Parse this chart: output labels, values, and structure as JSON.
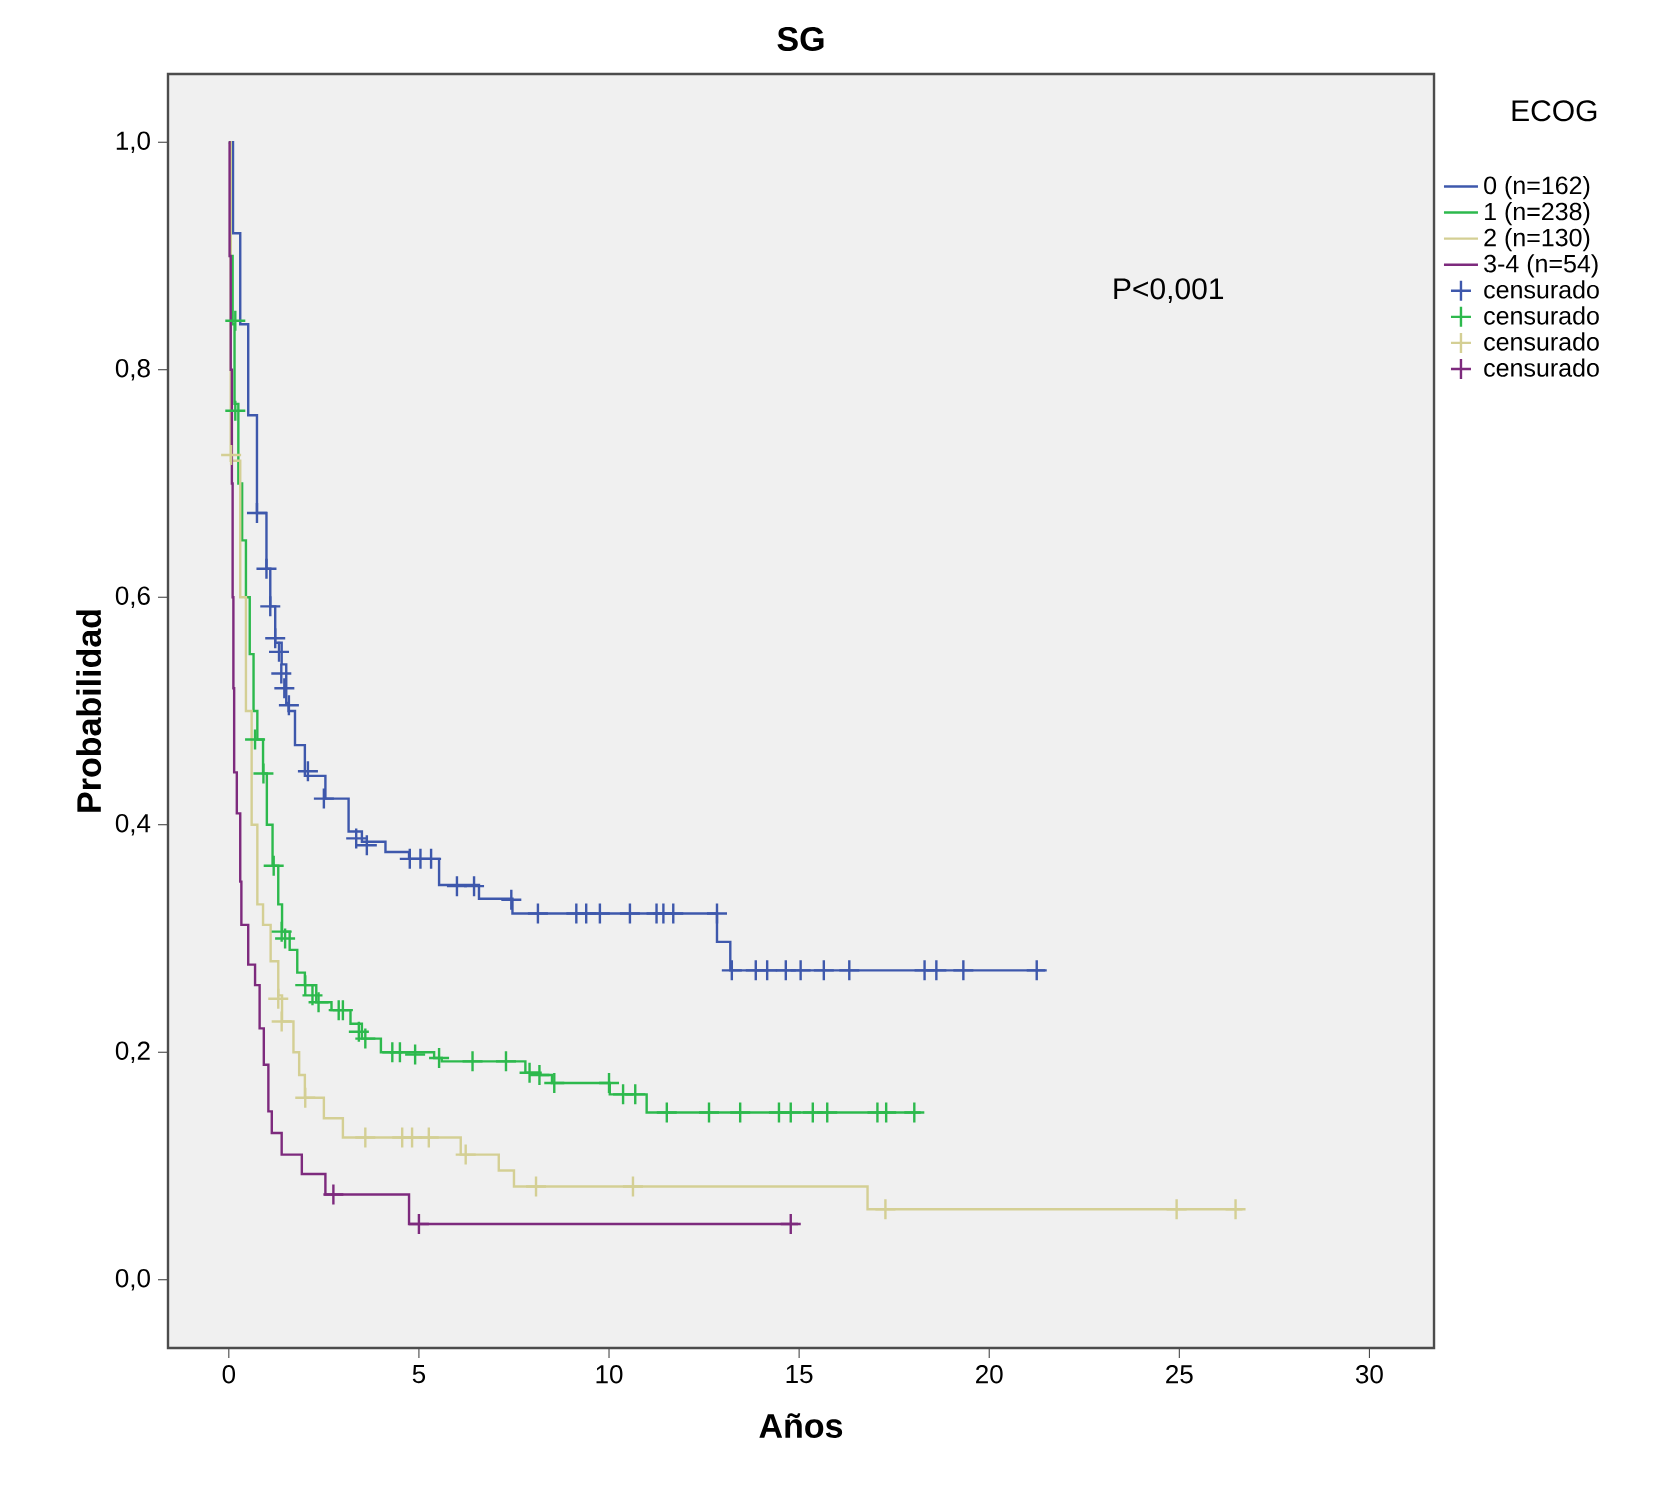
{
  "chart_data": {
    "type": "step",
    "title": "SG",
    "xlabel": "Años",
    "ylabel": "Probabilidad",
    "legend_title": "ECOG",
    "annotations": [
      "P<0,001"
    ],
    "xlim": [
      -1.6,
      31.7
    ],
    "ylim": [
      -0.06,
      1.06
    ],
    "xticks": [
      0,
      5,
      10,
      15,
      20,
      25,
      30
    ],
    "yticks": [
      {
        "value": 0,
        "label": "0,0"
      },
      {
        "value": 0.2,
        "label": "0,2"
      },
      {
        "value": 0.4,
        "label": "0,4"
      },
      {
        "value": 0.6,
        "label": "0,6"
      },
      {
        "value": 0.8,
        "label": "0,8"
      },
      {
        "value": 1.0,
        "label": "1,0"
      }
    ],
    "legend": "right",
    "series": [
      {
        "marker": "none",
        "name": "0 (n=162)",
        "color": "#3e58ac",
        "x": [
          0,
          0.11,
          0.3,
          0.51,
          0.74,
          0.99,
          1.09,
          1.22,
          1.39,
          1.51,
          1.57,
          1.74,
          2.0,
          2.54,
          3.15,
          3.5,
          4.12,
          4.74,
          5.53,
          6.58,
          7.46,
          12.84,
          13.19,
          21.47
        ],
        "values": [
          1.0,
          0.92,
          0.84,
          0.76,
          0.674,
          0.625,
          0.592,
          0.56,
          0.541,
          0.507,
          0.5,
          0.47,
          0.443,
          0.423,
          0.394,
          0.385,
          0.376,
          0.37,
          0.347,
          0.335,
          0.322,
          0.297,
          0.272,
          0.272
        ]
      },
      {
        "marker": "none",
        "name": "1 (n=238)",
        "color": "#2db94d",
        "x": [
          0,
          0.05,
          0.1,
          0.15,
          0.25,
          0.35,
          0.45,
          0.55,
          0.65,
          0.75,
          0.9,
          1.0,
          1.15,
          1.3,
          1.4,
          1.6,
          1.8,
          2.0,
          2.3,
          2.7,
          3.2,
          3.5,
          4.0,
          5.4,
          5.6,
          7.8,
          8.2,
          8.5,
          10.02,
          10.99,
          18.2
        ],
        "values": [
          1.0,
          0.9,
          0.84,
          0.77,
          0.7,
          0.65,
          0.6,
          0.55,
          0.5,
          0.475,
          0.445,
          0.4,
          0.364,
          0.33,
          0.306,
          0.29,
          0.27,
          0.259,
          0.244,
          0.237,
          0.225,
          0.212,
          0.2,
          0.195,
          0.192,
          0.182,
          0.18,
          0.173,
          0.163,
          0.147,
          0.147
        ]
      },
      {
        "marker": "none",
        "name": "2 (n=130)",
        "color": "#d4cf94",
        "x": [
          0,
          0.05,
          0.3,
          0.45,
          0.6,
          0.75,
          0.9,
          1.1,
          1.3,
          1.4,
          1.7,
          1.85,
          2.0,
          2.5,
          3.0,
          6.1,
          7.1,
          7.5,
          16.8,
          26.66
        ],
        "values": [
          1.0,
          0.72,
          0.6,
          0.5,
          0.4,
          0.33,
          0.312,
          0.28,
          0.25,
          0.227,
          0.2,
          0.18,
          0.16,
          0.142,
          0.125,
          0.11,
          0.096,
          0.082,
          0.062,
          0.062
        ]
      },
      {
        "marker": "none",
        "name": "3-4 (n=54)",
        "color": "#7d2a7d",
        "x": [
          0,
          0.02,
          0.05,
          0.08,
          0.1,
          0.12,
          0.14,
          0.21,
          0.3,
          0.33,
          0.51,
          0.69,
          0.81,
          0.92,
          1.04,
          1.13,
          1.39,
          1.92,
          2.54,
          4.74,
          14.97
        ],
        "values": [
          1.0,
          0.9,
          0.8,
          0.7,
          0.6,
          0.52,
          0.446,
          0.41,
          0.35,
          0.312,
          0.277,
          0.259,
          0.221,
          0.189,
          0.148,
          0.129,
          0.11,
          0.093,
          0.075,
          0.049,
          0.049
        ]
      },
      {
        "type": "scatter",
        "marker": "cross",
        "name": "censurado",
        "color": "#3e58ac",
        "x": [
          0.74,
          0.99,
          1.09,
          1.22,
          1.32,
          1.38,
          1.46,
          1.58,
          2.08,
          2.5,
          3.35,
          3.63,
          4.76,
          5.04,
          5.32,
          6.0,
          6.45,
          7.43,
          8.13,
          9.14,
          9.4,
          9.76,
          10.55,
          11.25,
          11.43,
          11.69,
          12.84,
          13.23,
          13.86,
          14.16,
          14.65,
          15.04,
          15.65,
          16.32,
          18.3,
          18.61,
          19.32,
          21.25
        ],
        "values": [
          0.674,
          0.625,
          0.592,
          0.564,
          0.552,
          0.533,
          0.52,
          0.505,
          0.447,
          0.423,
          0.388,
          0.382,
          0.37,
          0.37,
          0.37,
          0.346,
          0.346,
          0.334,
          0.322,
          0.322,
          0.322,
          0.322,
          0.322,
          0.322,
          0.322,
          0.322,
          0.322,
          0.272,
          0.272,
          0.272,
          0.272,
          0.272,
          0.272,
          0.272,
          0.272,
          0.272,
          0.272,
          0.272
        ]
      },
      {
        "type": "scatter",
        "marker": "cross",
        "name": "censurado",
        "color": "#2db94d",
        "x": [
          0.17,
          0.17,
          0.69,
          0.91,
          1.18,
          1.39,
          1.48,
          2.01,
          2.2,
          2.36,
          2.89,
          3.0,
          3.42,
          3.59,
          4.3,
          4.5,
          4.9,
          5.53,
          6.41,
          7.29,
          7.91,
          8.17,
          8.56,
          10.0,
          10.37,
          10.69,
          11.52,
          12.63,
          13.45,
          14.47,
          14.78,
          15.36,
          15.74,
          17.06,
          17.29,
          18.03
        ],
        "values": [
          0.843,
          0.764,
          0.475,
          0.445,
          0.364,
          0.306,
          0.3,
          0.259,
          0.25,
          0.244,
          0.237,
          0.237,
          0.218,
          0.212,
          0.2,
          0.2,
          0.198,
          0.195,
          0.192,
          0.192,
          0.182,
          0.18,
          0.173,
          0.173,
          0.163,
          0.163,
          0.147,
          0.147,
          0.147,
          0.147,
          0.147,
          0.147,
          0.147,
          0.147,
          0.147,
          0.147
        ]
      },
      {
        "type": "scatter",
        "marker": "cross",
        "name": "censurado",
        "color": "#d4cf94",
        "x": [
          0.06,
          1.3,
          1.39,
          2.01,
          3.59,
          4.56,
          4.82,
          5.26,
          6.23,
          8.08,
          10.63,
          17.27,
          24.93,
          26.48
        ],
        "values": [
          0.725,
          0.247,
          0.227,
          0.16,
          0.125,
          0.125,
          0.125,
          0.125,
          0.11,
          0.082,
          0.082,
          0.062,
          0.062,
          0.062
        ]
      },
      {
        "type": "scatter",
        "marker": "cross",
        "name": "censurado",
        "color": "#7d2a7d",
        "x": [
          2.75,
          5.0,
          14.78
        ],
        "values": [
          0.075,
          0.049,
          0.049
        ]
      }
    ]
  }
}
